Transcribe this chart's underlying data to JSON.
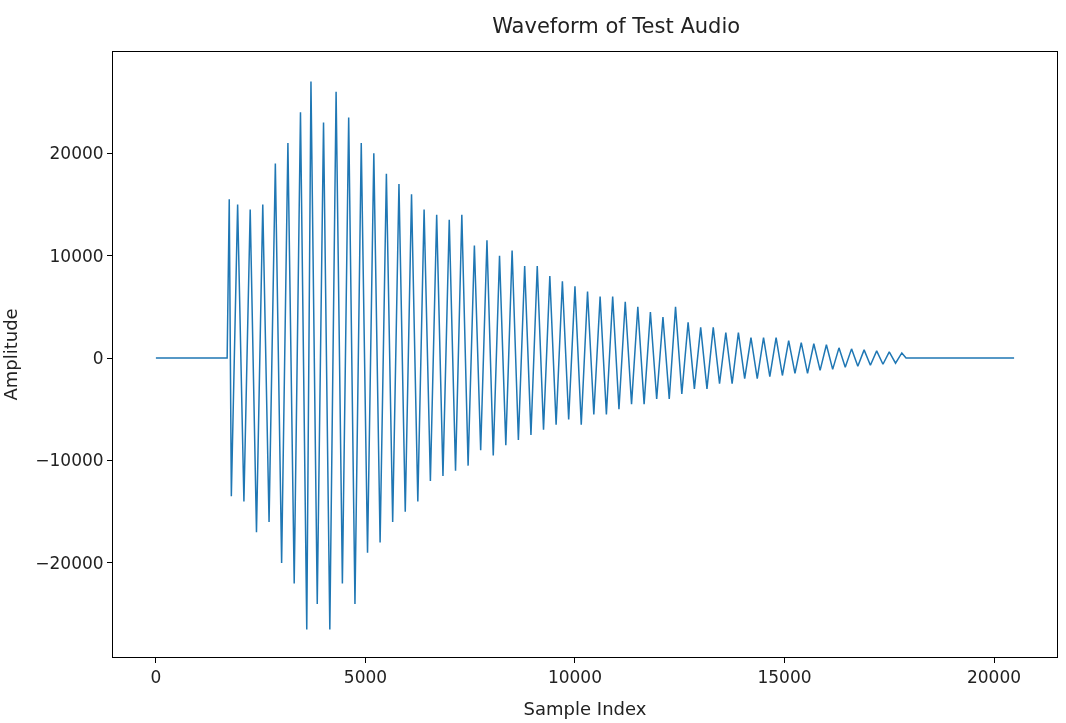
{
  "chart_data": {
    "type": "line",
    "title": "Waveform of Test Audio",
    "xlabel": "Sample Index",
    "ylabel": "Amplitude",
    "x": [
      0,
      1700,
      1750,
      1800,
      1950,
      2100,
      2250,
      2400,
      2550,
      2700,
      2850,
      3000,
      3150,
      3300,
      3450,
      3600,
      3700,
      3850,
      4000,
      4150,
      4300,
      4450,
      4600,
      4750,
      4900,
      5050,
      5200,
      5350,
      5500,
      5650,
      5800,
      5950,
      6100,
      6250,
      6400,
      6550,
      6700,
      6850,
      7000,
      7150,
      7300,
      7450,
      7600,
      7750,
      7900,
      8050,
      8200,
      8350,
      8500,
      8650,
      8800,
      8950,
      9100,
      9250,
      9400,
      9550,
      9700,
      9850,
      10000,
      10150,
      10300,
      10450,
      10600,
      10750,
      10900,
      11050,
      11200,
      11350,
      11500,
      11650,
      11800,
      11950,
      12100,
      12250,
      12400,
      12550,
      12700,
      12850,
      13000,
      13150,
      13300,
      13450,
      13600,
      13750,
      13900,
      14050,
      14200,
      14350,
      14500,
      14650,
      14800,
      14950,
      15100,
      15250,
      15400,
      15550,
      15700,
      15850,
      16000,
      16150,
      16300,
      16450,
      16600,
      16750,
      16900,
      17050,
      17200,
      17350,
      17500,
      17650,
      17800,
      17900,
      20479
    ],
    "series": [
      {
        "color": "#1f77b4",
        "values": [
          0,
          0,
          15500,
          -13500,
          15000,
          -14000,
          14500,
          -17000,
          15000,
          -16000,
          19000,
          -20000,
          21000,
          -22000,
          24000,
          -26500,
          27000,
          -24000,
          23000,
          -26500,
          26000,
          -22000,
          23500,
          -24000,
          21000,
          -19000,
          20000,
          -18000,
          18000,
          -16000,
          17000,
          -15000,
          16000,
          -14000,
          14500,
          -12000,
          14000,
          -11500,
          13500,
          -11000,
          14000,
          -10500,
          11000,
          -9000,
          11500,
          -9500,
          10000,
          -8500,
          10500,
          -8000,
          9000,
          -7500,
          9000,
          -7000,
          8000,
          -6500,
          7500,
          -6000,
          7000,
          -6500,
          6500,
          -5500,
          6000,
          -5500,
          6000,
          -5000,
          5500,
          -4500,
          5000,
          -4500,
          4500,
          -4000,
          4000,
          -4000,
          5000,
          -3500,
          3500,
          -3000,
          3000,
          -3000,
          3000,
          -2500,
          2500,
          -2500,
          2500,
          -2000,
          2000,
          -2000,
          2000,
          -1800,
          2000,
          -1700,
          1700,
          -1500,
          1500,
          -1500,
          1400,
          -1200,
          1300,
          -1100,
          1000,
          -900,
          900,
          -800,
          800,
          -700,
          700,
          -600,
          600,
          -500,
          500,
          0,
          0
        ]
      }
    ],
    "xlim": [
      -1024,
      21503
    ],
    "xticks": [
      0,
      5000,
      10000,
      15000,
      20000
    ],
    "ylim": [
      -29185,
      29885
    ],
    "yticks": [
      -20000,
      -10000,
      0,
      10000,
      20000
    ],
    "marker": "none",
    "line_style": "solid"
  }
}
